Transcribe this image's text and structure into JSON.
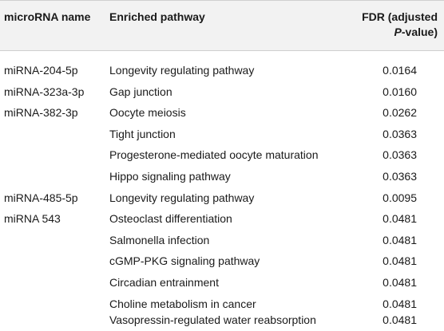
{
  "header": {
    "col_name": "microRNA name",
    "col_pathway": "Enriched pathway",
    "col_fdr_line1": "FDR (adjusted",
    "col_fdr_p": "P",
    "col_fdr_rest": "-value)"
  },
  "rows": [
    {
      "name": "miRNA-204-5p",
      "pathway": "Longevity regulating pathway",
      "fdr": "0.0164"
    },
    {
      "name": "miRNA-323a-3p",
      "pathway": "Gap junction",
      "fdr": "0.0160"
    },
    {
      "name": "miRNA-382-3p",
      "pathway": "Oocyte meiosis",
      "fdr": "0.0262"
    },
    {
      "name": "",
      "pathway": "Tight junction",
      "fdr": "0.0363"
    },
    {
      "name": "",
      "pathway": "Progesterone-mediated oocyte maturation",
      "fdr": "0.0363"
    },
    {
      "name": "",
      "pathway": "Hippo signaling pathway",
      "fdr": "0.0363"
    },
    {
      "name": "miRNA-485-5p",
      "pathway": "Longevity regulating pathway",
      "fdr": "0.0095"
    },
    {
      "name": "miRNA 543",
      "pathway": "Osteoclast differentiation",
      "fdr": "0.0481"
    },
    {
      "name": "",
      "pathway": "Salmonella infection",
      "fdr": "0.0481"
    },
    {
      "name": "",
      "pathway": "cGMP-PKG signaling pathway",
      "fdr": "0.0481"
    },
    {
      "name": "",
      "pathway": "Circadian entrainment",
      "fdr": "0.0481"
    },
    {
      "name": "",
      "pathway": "Choline metabolism in cancer",
      "fdr": "0.0481"
    },
    {
      "name": "",
      "pathway": "Vasopressin-regulated water reabsorption",
      "fdr": "0.0481"
    }
  ]
}
